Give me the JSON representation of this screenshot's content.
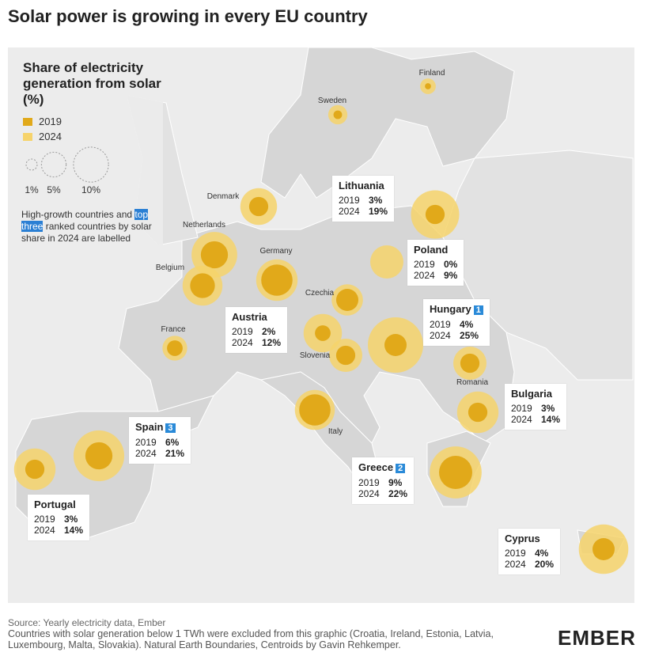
{
  "title": "Solar power is growing in every EU country",
  "legend": {
    "title": "Share of electricity generation from solar (%)",
    "series": [
      {
        "name": "2019",
        "color": "#e1a91a"
      },
      {
        "name": "2024",
        "color": "#f6d36b"
      }
    ],
    "size_scale": [
      {
        "value": 1,
        "label": "1%"
      },
      {
        "value": 5,
        "label": "5%"
      },
      {
        "value": 10,
        "label": "10%"
      }
    ],
    "note_parts": [
      "High-growth countries and ",
      "top three",
      " ranked countries by solar share in 2024 are labelled"
    ]
  },
  "countries": [
    {
      "name": "Finland",
      "values": [
        0.3,
        2
      ]
    },
    {
      "name": "Sweden",
      "values": [
        0.6,
        3
      ]
    },
    {
      "name": "Denmark",
      "values": [
        3,
        11
      ]
    },
    {
      "name": "Netherlands",
      "values": [
        6,
        17
      ]
    },
    {
      "name": "Belgium",
      "values": [
        5,
        13
      ]
    },
    {
      "name": "Germany",
      "values": [
        8,
        14
      ]
    },
    {
      "name": "Czechia",
      "values": [
        4,
        8
      ]
    },
    {
      "name": "France",
      "values": [
        2,
        5
      ]
    },
    {
      "name": "Slovenia",
      "values": [
        3,
        9
      ]
    },
    {
      "name": "Italy",
      "values": [
        8,
        13
      ]
    },
    {
      "name": "Romania",
      "values": [
        3,
        9
      ]
    },
    {
      "name": "Lithuania",
      "values": [
        3,
        19
      ],
      "value_labels": [
        "3%",
        "19%"
      ]
    },
    {
      "name": "Poland",
      "values": [
        0,
        9
      ],
      "value_labels": [
        "0%",
        "9%"
      ]
    },
    {
      "name": "Austria",
      "values": [
        2,
        12
      ],
      "value_labels": [
        "2%",
        "12%"
      ]
    },
    {
      "name": "Hungary",
      "values": [
        4,
        25
      ],
      "value_labels": [
        "4%",
        "25%"
      ],
      "rank": 1
    },
    {
      "name": "Bulgaria",
      "values": [
        3,
        14
      ],
      "value_labels": [
        "3%",
        "14%"
      ]
    },
    {
      "name": "Spain",
      "values": [
        6,
        21
      ],
      "value_labels": [
        "6%",
        "21%"
      ],
      "rank": 3
    },
    {
      "name": "Greece",
      "values": [
        9,
        22
      ],
      "value_labels": [
        "9%",
        "22%"
      ],
      "rank": 2
    },
    {
      "name": "Portugal",
      "values": [
        3,
        14
      ],
      "value_labels": [
        "3%",
        "14%"
      ]
    },
    {
      "name": "Cyprus",
      "values": [
        4,
        20
      ],
      "value_labels": [
        "4%",
        "20%"
      ]
    }
  ],
  "source": "Source: Yearly electricity data, Ember",
  "footnote": "Countries with solar generation below 1 TWh were excluded from this graphic (Croatia, Ireland, Estonia, Latvia, Luxembourg, Malta, Slovakia). Natural Earth Boundaries, Centroids by Gavin Rehkemper.",
  "logo": "EMBER"
}
